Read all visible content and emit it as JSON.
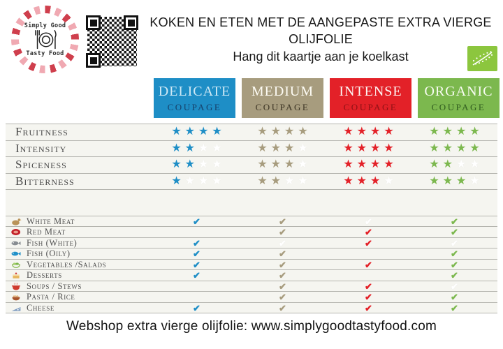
{
  "brand": {
    "name_top": "Simply Good",
    "name_bottom": "Tasty Food"
  },
  "header": {
    "title_line1": "KOKEN EN ETEN MET DE AANGEPASTE EXTRA VIERGE",
    "title_line2": "OLIJFOLIE",
    "subtitle": "Hang dit kaartje aan je koelkast"
  },
  "columns": [
    {
      "name": "DELICATE",
      "sub": "COUPAGE",
      "bg": "#1E8EC6",
      "name_color": "#CDE8F5",
      "sub_color": "#17406A",
      "accent": "#1E8EC6"
    },
    {
      "name": "MEDIUM",
      "sub": "COUPAGE",
      "bg": "#A79C7E",
      "name_color": "#FDFBF3",
      "sub_color": "#3B3323",
      "accent": "#A79C7E"
    },
    {
      "name": "INTENSE",
      "sub": "COUPAGE",
      "bg": "#E32128",
      "name_color": "#FDF6F4",
      "sub_color": "#8D1115",
      "accent": "#E32128"
    },
    {
      "name": "ORGANIC",
      "sub": "COUPAGE",
      "bg": "#7CB84E",
      "name_color": "#F8FCF2",
      "sub_color": "#2F5B1E",
      "accent": "#7CB84E"
    }
  ],
  "attributes": {
    "max_stars": 4,
    "rows": [
      {
        "label": "Fruitness",
        "ratings": [
          4,
          4,
          4,
          4
        ]
      },
      {
        "label": "Intensity",
        "ratings": [
          2,
          3,
          4,
          4
        ]
      },
      {
        "label": "Spiceness",
        "ratings": [
          2,
          3,
          4,
          2
        ]
      },
      {
        "label": "Bitterness",
        "ratings": [
          1,
          2,
          3,
          3
        ]
      }
    ]
  },
  "foods": {
    "rows": [
      {
        "label": "White Meat",
        "icon": "chicken-icon",
        "checks": [
          "yes",
          "yes",
          "ghost",
          "yes"
        ]
      },
      {
        "label": "Red Meat",
        "icon": "red-meat-icon",
        "checks": [
          "no",
          "yes",
          "yes",
          "yes"
        ]
      },
      {
        "label": "Fish (White)",
        "icon": "white-fish-icon",
        "checks": [
          "yes",
          "ghost",
          "yes",
          "ghost"
        ]
      },
      {
        "label": "Fish (Oily)",
        "icon": "oily-fish-icon",
        "checks": [
          "yes",
          "yes",
          "no",
          "yes"
        ]
      },
      {
        "label": "Vegetables /Salads",
        "icon": "salad-icon",
        "checks": [
          "yes",
          "yes",
          "yes",
          "yes"
        ]
      },
      {
        "label": "Desserts",
        "icon": "cake-icon",
        "checks": [
          "yes",
          "yes",
          "no",
          "yes"
        ]
      },
      {
        "label": "Soups / Stews",
        "icon": "soup-pot-icon",
        "checks": [
          "no",
          "yes",
          "yes",
          "ghost"
        ]
      },
      {
        "label": "Pasta / Rice",
        "icon": "pasta-bowl-icon",
        "checks": [
          "no",
          "yes",
          "yes",
          "yes"
        ]
      },
      {
        "label": "Cheese",
        "icon": "cheese-icon",
        "checks": [
          "yes",
          "yes",
          "yes",
          "yes"
        ]
      }
    ]
  },
  "footer": {
    "text": "Webshop extra vierge olijfolie: www.simplygoodtastyfood.com"
  },
  "misc": {
    "star_glyph": "★",
    "check_glyph": "✔",
    "ghost_color": "#ffffff",
    "line_color": "#b5b5af",
    "panel_bg": "#f5f5f0"
  }
}
